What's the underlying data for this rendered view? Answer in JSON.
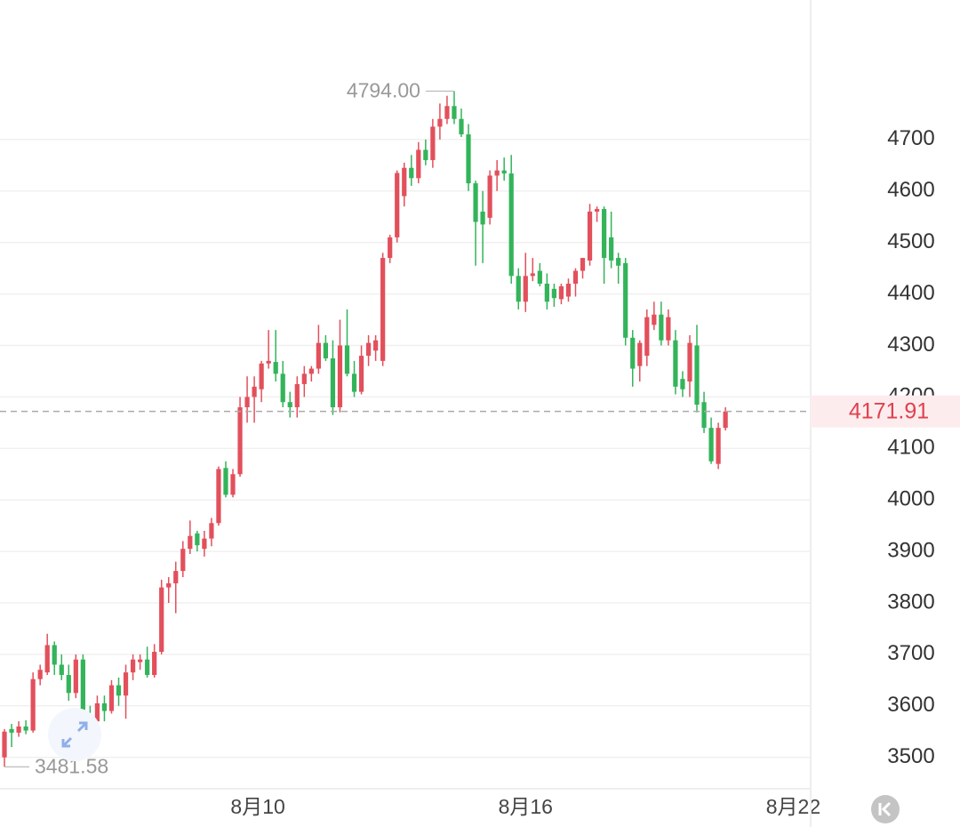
{
  "chart_data": {
    "type": "candlestick",
    "x": [
      4.32,
      4.48,
      4.64,
      4.8,
      4.96,
      5.12,
      5.28,
      5.44,
      5.6,
      5.76,
      5.92,
      6.08,
      6.24,
      6.4,
      6.56,
      6.72,
      6.88,
      7.04,
      7.2,
      7.36,
      7.52,
      7.68,
      7.84,
      8,
      8.16,
      8.32,
      8.48,
      8.64,
      8.8,
      8.96,
      9.12,
      9.28,
      9.44,
      9.6,
      9.76,
      9.92,
      10.08,
      10.24,
      10.4,
      10.56,
      10.72,
      10.88,
      11.04,
      11.2,
      11.36,
      11.52,
      11.68,
      11.84,
      12,
      12.16,
      12.32,
      12.48,
      12.64,
      12.8,
      12.96,
      13.12,
      13.28,
      13.44,
      13.6,
      13.76,
      13.92,
      14.08,
      14.24,
      14.4,
      14.56,
      14.72,
      14.88,
      15.04,
      15.2,
      15.36,
      15.52,
      15.68,
      15.84,
      16,
      16.16,
      16.32,
      16.48,
      16.64,
      16.8,
      16.96,
      17.12,
      17.28,
      17.44,
      17.6,
      17.76,
      17.92,
      18.08,
      18.24,
      18.4,
      18.56,
      18.72,
      18.88,
      19.04,
      19.2,
      19.36,
      19.52,
      19.68,
      19.84,
      20,
      20.16,
      20.32,
      20.48
    ],
    "open": [
      3500,
      3555,
      3548,
      3560,
      3552,
      3652,
      3665,
      3718,
      3680,
      3660,
      3625,
      3690,
      3575,
      3570,
      3605,
      3590,
      3640,
      3620,
      3665,
      3685,
      3690,
      3660,
      3705,
      3830,
      3838,
      3862,
      3905,
      3935,
      3905,
      3925,
      3955,
      4062,
      4010,
      4050,
      4180,
      4200,
      4215,
      4265,
      4268,
      4245,
      4190,
      4180,
      4225,
      4245,
      4255,
      4305,
      4275,
      4180,
      4300,
      4245,
      4210,
      4280,
      4290,
      4270,
      4470,
      4510,
      4590,
      4645,
      4625,
      4680,
      4660,
      4725,
      4740,
      4765,
      4740,
      4710,
      4615,
      4560,
      4548,
      4630,
      4640,
      4634,
      4435,
      4385,
      4435,
      4445,
      4420,
      4410,
      4390,
      4395,
      4420,
      4445,
      4465,
      4560,
      4565,
      4510,
      4470,
      4460,
      4315,
      4260,
      4280,
      4340,
      4360,
      4310,
      4310,
      4235,
      4230,
      4300,
      4190,
      4140,
      4070,
      4140
    ],
    "high": [
      3555,
      3565,
      3570,
      3572,
      3665,
      3680,
      3740,
      3725,
      3700,
      3680,
      3700,
      3700,
      3600,
      3620,
      3620,
      3650,
      3655,
      3680,
      3700,
      3700,
      3715,
      3720,
      3845,
      3850,
      3880,
      3920,
      3960,
      3940,
      3940,
      3965,
      4065,
      4075,
      4060,
      4200,
      4240,
      4240,
      4270,
      4330,
      4330,
      4270,
      4210,
      4240,
      4260,
      4260,
      4340,
      4320,
      4310,
      4350,
      4370,
      4270,
      4300,
      4320,
      4320,
      4480,
      4515,
      4640,
      4655,
      4670,
      4695,
      4700,
      4740,
      4770,
      4785,
      4794,
      4760,
      4730,
      4620,
      4600,
      4640,
      4660,
      4665,
      4670,
      4450,
      4480,
      4470,
      4460,
      4440,
      4420,
      4420,
      4430,
      4450,
      4470,
      4575,
      4570,
      4570,
      4560,
      4480,
      4470,
      4330,
      4310,
      4370,
      4385,
      4385,
      4370,
      4330,
      4250,
      4320,
      4340,
      4210,
      4160,
      4150,
      4180
    ],
    "low": [
      3481.58,
      3520,
      3540,
      3545,
      3548,
      3640,
      3660,
      3660,
      3650,
      3610,
      3615,
      3560,
      3550,
      3540,
      3570,
      3585,
      3600,
      3575,
      3650,
      3670,
      3655,
      3655,
      3700,
      3800,
      3780,
      3850,
      3895,
      3900,
      3890,
      3910,
      3950,
      4005,
      4005,
      4045,
      4150,
      4150,
      4190,
      4255,
      4230,
      4180,
      4160,
      4160,
      4200,
      4230,
      4245,
      4270,
      4165,
      4170,
      4240,
      4200,
      4205,
      4260,
      4270,
      4260,
      4460,
      4500,
      4570,
      4610,
      4615,
      4650,
      4645,
      4700,
      4730,
      4730,
      4705,
      4600,
      4455,
      4460,
      4535,
      4600,
      4620,
      4420,
      4370,
      4365,
      4425,
      4415,
      4370,
      4375,
      4380,
      4385,
      4395,
      4430,
      4455,
      4540,
      4420,
      4450,
      4420,
      4300,
      4220,
      4230,
      4260,
      4330,
      4300,
      4300,
      4205,
      4200,
      4200,
      4170,
      4130,
      4070,
      4060,
      4135
    ],
    "close": [
      3550,
      3548,
      3560,
      3552,
      3652,
      3670,
      3718,
      3680,
      3660,
      3625,
      3690,
      3575,
      3570,
      3605,
      3590,
      3640,
      3620,
      3665,
      3690,
      3690,
      3660,
      3705,
      3830,
      3838,
      3862,
      3905,
      3930,
      3912,
      3925,
      3955,
      4060,
      4010,
      4050,
      4180,
      4200,
      4220,
      4265,
      4270,
      4245,
      4190,
      4180,
      4225,
      4245,
      4255,
      4305,
      4275,
      4180,
      4300,
      4245,
      4210,
      4280,
      4305,
      4310,
      4470,
      4510,
      4635,
      4645,
      4625,
      4680,
      4660,
      4725,
      4740,
      4765,
      4740,
      4710,
      4615,
      4540,
      4535,
      4630,
      4640,
      4634,
      4435,
      4385,
      4435,
      4440,
      4420,
      4385,
      4392,
      4415,
      4420,
      4445,
      4470,
      4560,
      4565,
      4470,
      4465,
      4455,
      4315,
      4255,
      4305,
      4355,
      4360,
      4310,
      4355,
      4220,
      4215,
      4305,
      4185,
      4140,
      4075,
      4140,
      4171.91
    ],
    "up_color": "#e2505c",
    "down_color": "#33b45a",
    "xlim": [
      4.22,
      22.39
    ],
    "xticks": [
      {
        "value": 10,
        "label": "8月10"
      },
      {
        "value": 16,
        "label": "8月16"
      },
      {
        "value": 22,
        "label": "8月22"
      }
    ],
    "ylim": [
      3439,
      4971
    ],
    "yticks": [
      3500,
      3600,
      3700,
      3800,
      3900,
      4000,
      4100,
      4200,
      4300,
      4400,
      4500,
      4600,
      4700
    ],
    "grid": true,
    "high_label": {
      "value": 4794,
      "label": "4794.00"
    },
    "low_label": 3481.58,
    "last_price": 4171.91
  }
}
